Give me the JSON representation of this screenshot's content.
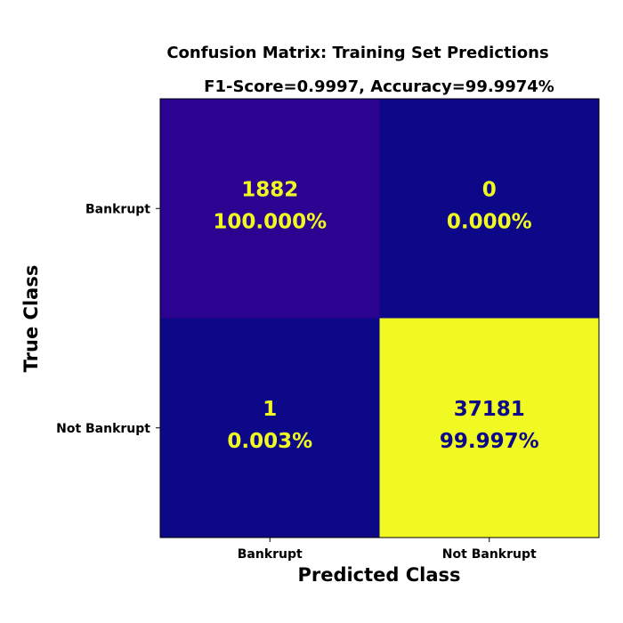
{
  "chart_data": {
    "type": "heatmap",
    "title": "Confusion Matrix: Training Set Predictions",
    "subtitle": "F1-Score=0.9997,  Accuracy=99.9974%",
    "xlabel": "Predicted Class",
    "ylabel": "True Class",
    "x_categories": [
      "Bankrupt",
      "Not Bankrupt"
    ],
    "y_categories": [
      "Bankrupt",
      "Not Bankrupt"
    ],
    "cells": [
      {
        "row": 0,
        "col": 0,
        "count": "1882",
        "percent": "100.000%",
        "fill": "#2b0390",
        "text_color": "#f0f921"
      },
      {
        "row": 0,
        "col": 1,
        "count": "0",
        "percent": "0.000%",
        "fill": "#0d0887",
        "text_color": "#f0f921"
      },
      {
        "row": 1,
        "col": 0,
        "count": "1",
        "percent": "0.003%",
        "fill": "#0d0887",
        "text_color": "#f0f921"
      },
      {
        "row": 1,
        "col": 1,
        "count": "37181",
        "percent": "99.997%",
        "fill": "#f0f921",
        "text_color": "#0d0887"
      }
    ],
    "colormap": "plasma",
    "grid": false
  }
}
